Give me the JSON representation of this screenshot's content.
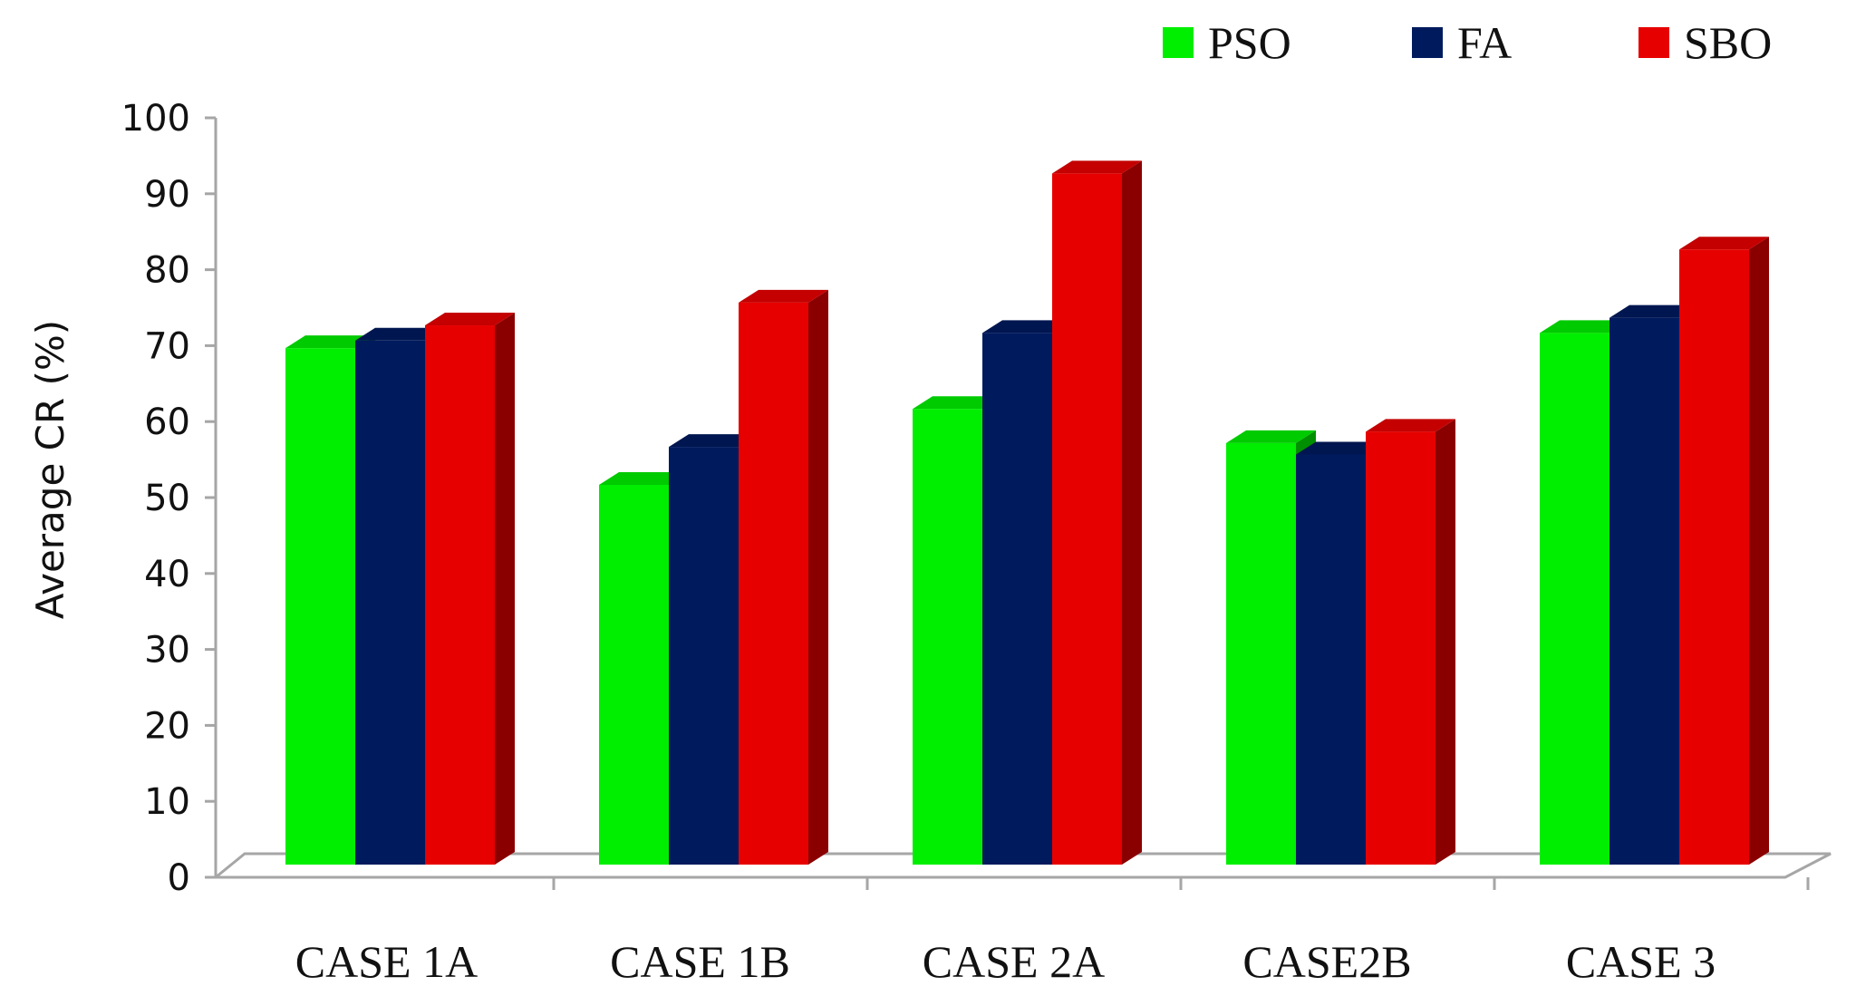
{
  "chart_data": {
    "type": "bar",
    "title": "",
    "xlabel": "",
    "ylabel": "Average CR (%)",
    "ylim": [
      0,
      100
    ],
    "yticks": [
      0,
      10,
      20,
      30,
      40,
      50,
      60,
      70,
      80,
      90,
      100
    ],
    "categories": [
      "CASE 1A",
      "CASE 1B",
      "CASE 2A",
      "CASE2B",
      "CASE 3"
    ],
    "series": [
      {
        "name": "PSO",
        "color": "#00ee00",
        "values": [
          68,
          50,
          60,
          55.5,
          70
        ]
      },
      {
        "name": "FA",
        "color": "#001a5e",
        "values": [
          69,
          55,
          70,
          54,
          72
        ]
      },
      {
        "name": "SBO",
        "color": "#e60000",
        "values": [
          71,
          74,
          91,
          57,
          81
        ]
      }
    ],
    "legend_position": "top-right",
    "grid": false,
    "style": "3d-clustered-column"
  }
}
